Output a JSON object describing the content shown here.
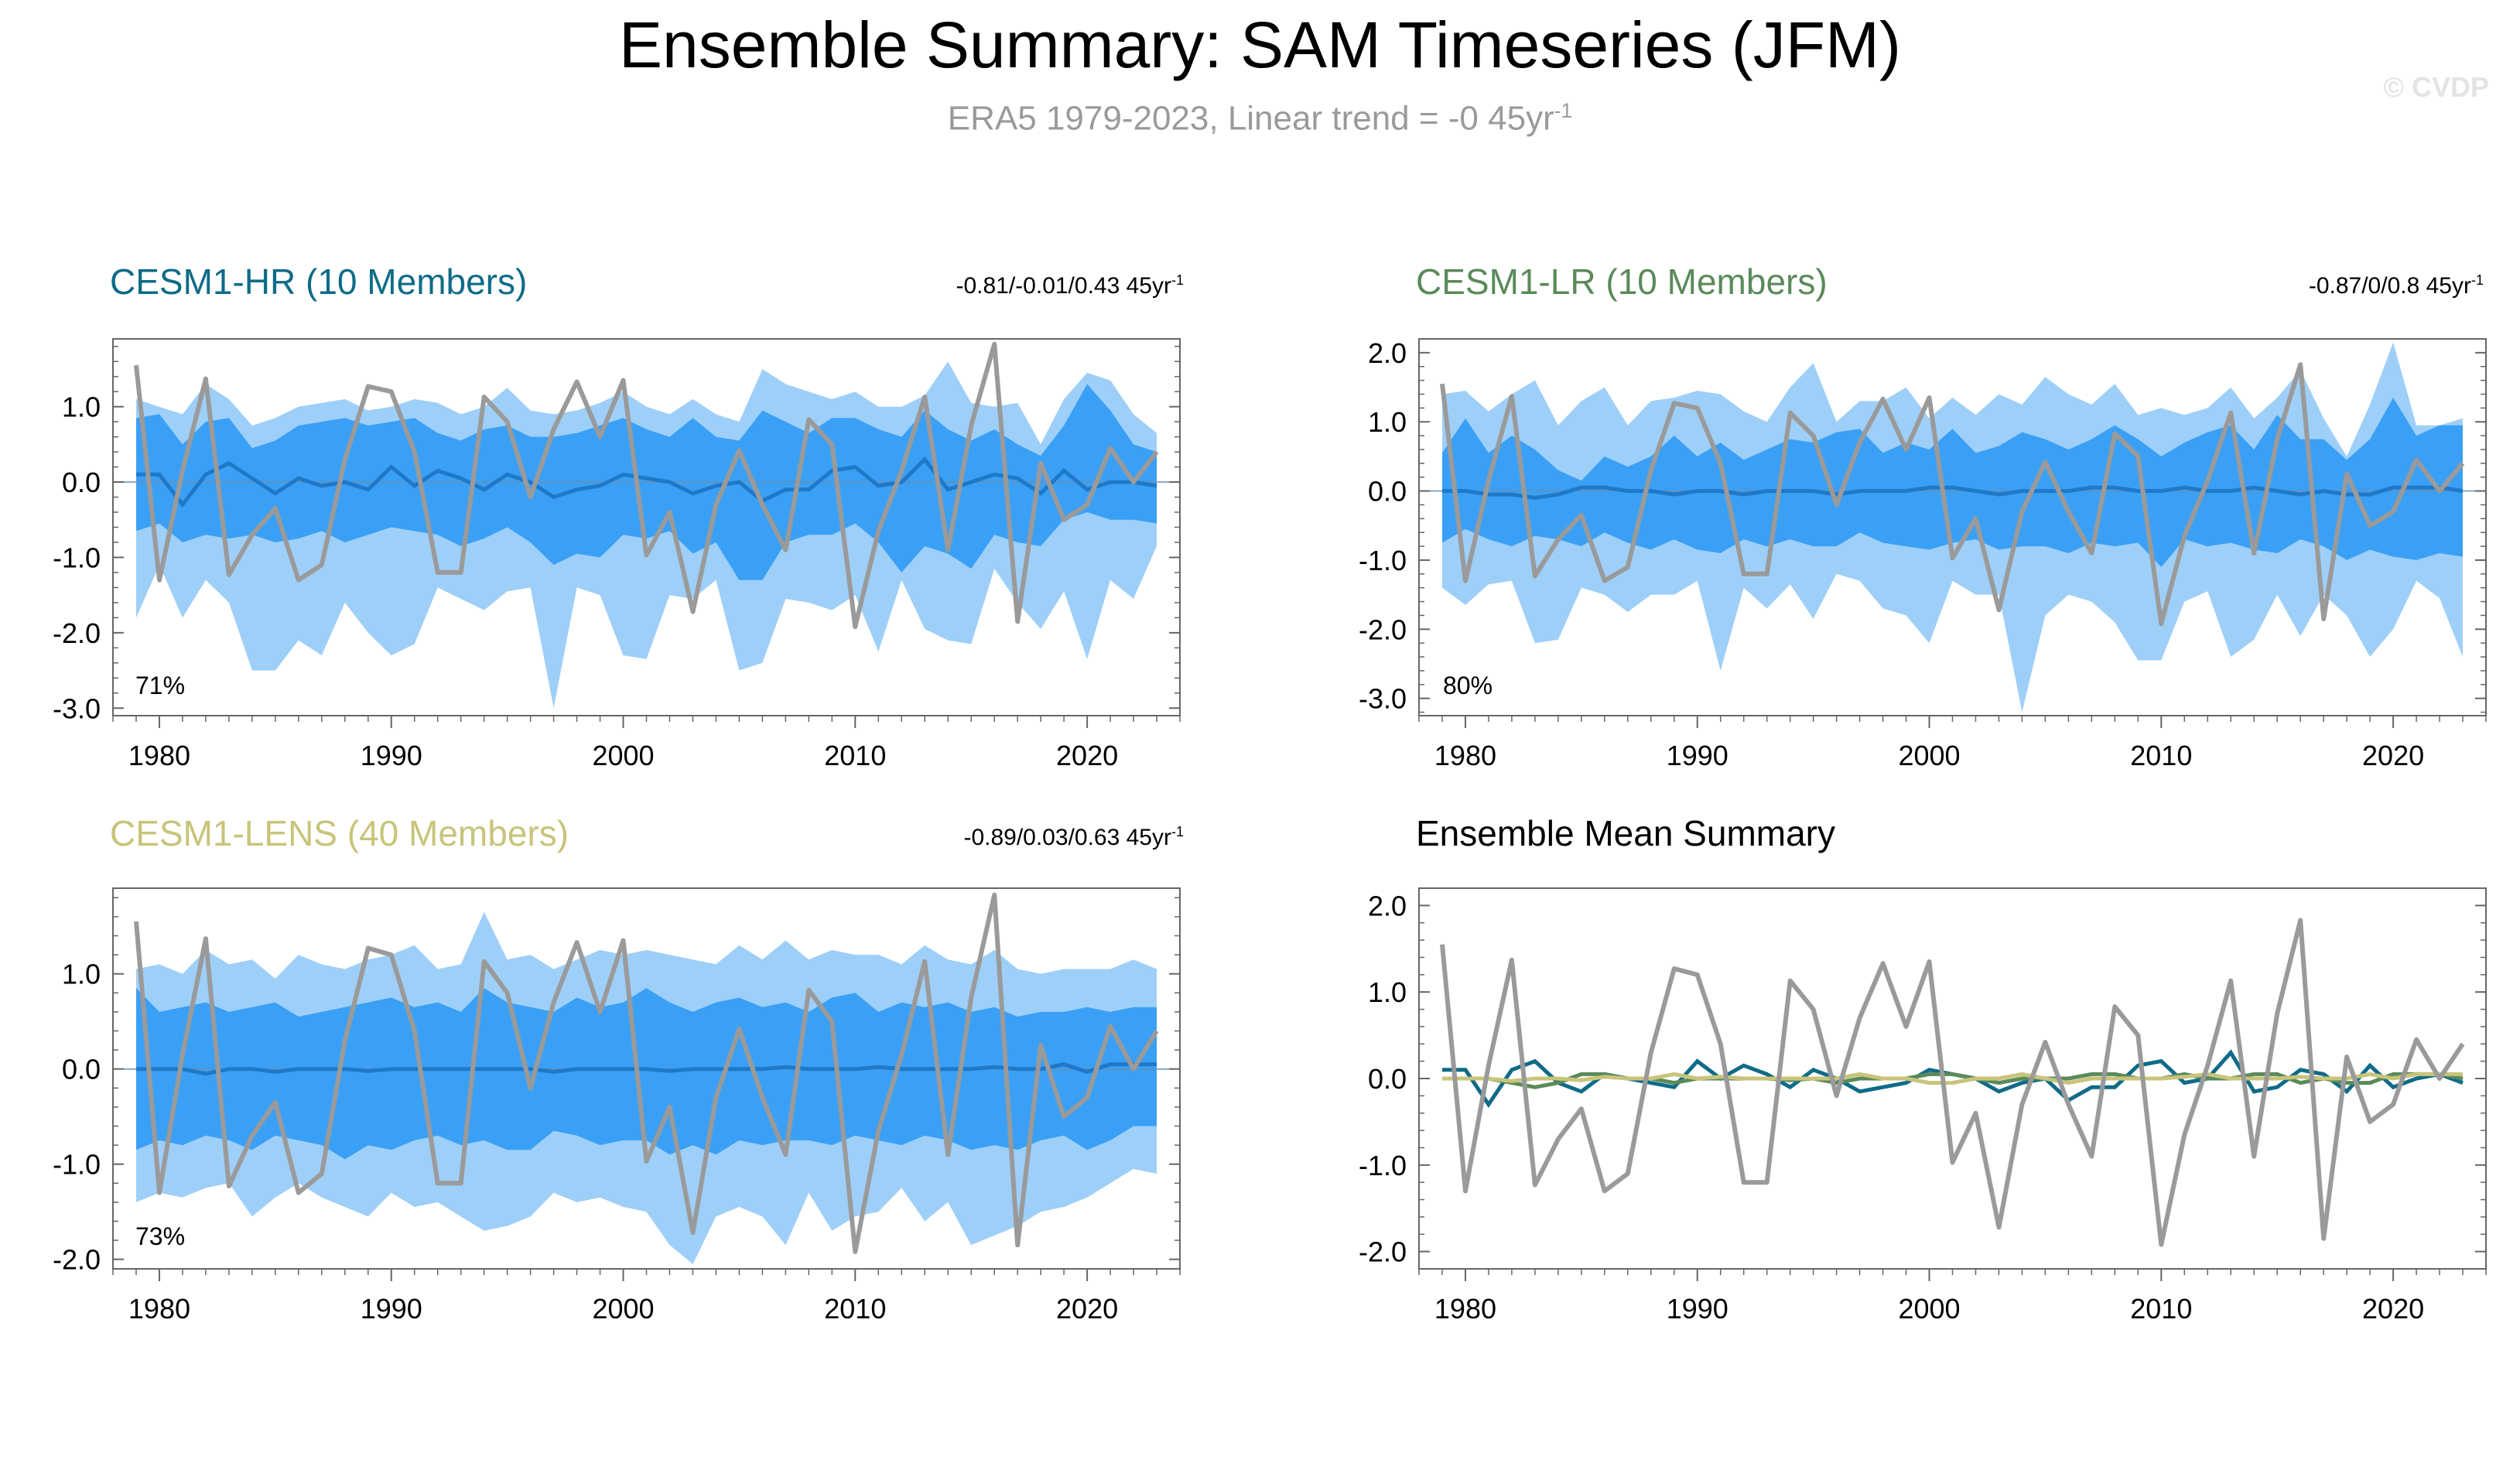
{
  "figure": {
    "title": "Ensemble Summary: SAM Timeseries (JFM)",
    "subtitle": "ERA5 1979-2023, Linear trend = -0 45yr",
    "subtitle_sup": "-1",
    "watermark": "© CVDP"
  },
  "colors": {
    "hr": "#0f6b87",
    "lr": "#5a8a5a",
    "lens": "#c8c47a",
    "obs": "#9a9a9a",
    "band_outer": "#9ecff8",
    "band_inner": "#3aa0f5",
    "mean_line": "#1f78c8"
  },
  "chart_data": [
    {
      "id": "hr",
      "type": "area",
      "title": "CESM1-HR (10 Members)",
      "range_text": "-0.81/-0.01/0.43 45yr",
      "range_sup": "-1",
      "percent_text": "71%",
      "x_start": 1979,
      "xlim": [
        1978,
        2024
      ],
      "ylim": [
        -3.1,
        1.9
      ],
      "yticks": [
        {
          "v": 1.0,
          "label": "1.0"
        },
        {
          "v": 0.0,
          "label": "0.0"
        },
        {
          "v": -1.0,
          "label": "-1.0"
        },
        {
          "v": -2.0,
          "label": "-2.0"
        },
        {
          "v": -3.0,
          "label": "-3.0"
        }
      ],
      "xticks": [
        1980,
        1990,
        2000,
        2010,
        2020
      ],
      "ens_mean": [
        0.1,
        0.1,
        -0.3,
        0.1,
        0.25,
        0.05,
        -0.15,
        0.05,
        -0.05,
        0.0,
        -0.1,
        0.2,
        -0.05,
        0.15,
        0.05,
        -0.1,
        0.1,
        0.0,
        -0.2,
        -0.1,
        -0.05,
        0.1,
        0.05,
        0.0,
        -0.15,
        -0.05,
        0.0,
        -0.25,
        -0.1,
        -0.1,
        0.15,
        0.2,
        -0.05,
        0.0,
        0.3,
        -0.1,
        0.0,
        0.1,
        0.05,
        -0.15,
        0.15,
        -0.1,
        0.0,
        0.0,
        -0.05
      ],
      "inner_upper": [
        0.85,
        0.9,
        0.5,
        0.8,
        0.85,
        0.45,
        0.55,
        0.75,
        0.8,
        0.85,
        0.75,
        0.8,
        0.85,
        0.65,
        0.55,
        0.7,
        0.75,
        0.6,
        0.6,
        0.65,
        0.75,
        0.85,
        0.7,
        0.6,
        0.85,
        0.6,
        0.55,
        0.95,
        0.8,
        0.65,
        0.85,
        0.85,
        0.7,
        0.6,
        0.95,
        0.7,
        0.55,
        0.7,
        0.5,
        0.35,
        0.75,
        1.3,
        0.95,
        0.5,
        0.4
      ],
      "inner_lower": [
        -0.65,
        -0.55,
        -0.8,
        -0.7,
        -0.75,
        -0.7,
        -0.8,
        -0.75,
        -0.65,
        -0.8,
        -0.7,
        -0.6,
        -0.65,
        -0.7,
        -0.85,
        -0.75,
        -0.6,
        -0.8,
        -1.1,
        -0.95,
        -1.0,
        -0.7,
        -0.75,
        -0.65,
        -0.95,
        -0.8,
        -1.3,
        -1.3,
        -0.8,
        -0.7,
        -0.7,
        -0.55,
        -0.8,
        -1.2,
        -0.85,
        -0.95,
        -1.15,
        -0.7,
        -0.8,
        -0.85,
        -0.5,
        -0.4,
        -0.5,
        -0.5,
        -0.55
      ],
      "outer_upper": [
        1.1,
        1.0,
        0.9,
        1.3,
        1.1,
        0.75,
        0.85,
        1.0,
        1.05,
        1.1,
        0.95,
        1.0,
        1.1,
        1.05,
        0.9,
        1.0,
        1.25,
        0.95,
        0.9,
        0.95,
        1.05,
        1.2,
        1.0,
        0.9,
        1.1,
        0.9,
        0.8,
        1.5,
        1.3,
        1.2,
        1.1,
        1.2,
        1.0,
        1.0,
        1.15,
        1.6,
        1.05,
        1.0,
        1.05,
        0.5,
        1.1,
        1.45,
        1.35,
        0.9,
        0.65
      ],
      "outer_lower": [
        -1.8,
        -1.1,
        -1.8,
        -1.3,
        -1.6,
        -2.5,
        -2.5,
        -2.1,
        -2.3,
        -1.6,
        -2.0,
        -2.3,
        -2.15,
        -1.4,
        -1.55,
        -1.7,
        -1.45,
        -1.4,
        -3.0,
        -1.4,
        -1.5,
        -2.3,
        -2.35,
        -1.5,
        -1.55,
        -1.3,
        -2.5,
        -2.4,
        -1.55,
        -1.6,
        -1.7,
        -1.5,
        -2.25,
        -1.3,
        -1.95,
        -2.1,
        -2.15,
        -1.15,
        -1.6,
        -1.95,
        -1.45,
        -2.35,
        -1.3,
        -1.55,
        -0.85
      ]
    },
    {
      "id": "lr",
      "type": "area",
      "title": "CESM1-LR (10 Members)",
      "range_text": "-0.87/0/0.8 45yr",
      "range_sup": "-1",
      "percent_text": "80%",
      "x_start": 1979,
      "xlim": [
        1978,
        2024
      ],
      "ylim": [
        -3.25,
        2.2
      ],
      "yticks": [
        {
          "v": 2.0,
          "label": "2.0"
        },
        {
          "v": 1.0,
          "label": "1.0"
        },
        {
          "v": 0.0,
          "label": "0.0"
        },
        {
          "v": -1.0,
          "label": "-1.0"
        },
        {
          "v": -2.0,
          "label": "-2.0"
        },
        {
          "v": -3.0,
          "label": "-3.0"
        }
      ],
      "xticks": [
        1980,
        1990,
        2000,
        2010,
        2020
      ],
      "ens_mean": [
        0.0,
        0.0,
        -0.05,
        -0.05,
        -0.1,
        -0.05,
        0.05,
        0.05,
        0.0,
        0.0,
        -0.05,
        0.0,
        0.0,
        -0.05,
        0.0,
        0.0,
        0.0,
        -0.05,
        0.0,
        0.0,
        0.0,
        0.05,
        0.05,
        0.0,
        -0.05,
        0.0,
        0.0,
        0.0,
        0.05,
        0.05,
        0.0,
        0.0,
        0.05,
        0.0,
        0.0,
        0.05,
        0.0,
        -0.05,
        0.0,
        -0.05,
        -0.05,
        0.05,
        0.05,
        0.05,
        0.0
      ],
      "inner_upper": [
        0.55,
        1.05,
        0.55,
        0.8,
        0.6,
        0.3,
        0.15,
        0.5,
        0.35,
        0.5,
        0.8,
        0.5,
        0.7,
        0.45,
        0.6,
        0.75,
        0.7,
        0.85,
        0.9,
        0.55,
        0.7,
        0.6,
        0.9,
        0.55,
        0.65,
        0.85,
        0.75,
        0.6,
        0.75,
        0.95,
        0.75,
        0.5,
        0.7,
        0.85,
        0.95,
        0.6,
        1.1,
        0.75,
        0.75,
        0.45,
        0.75,
        1.35,
        0.8,
        0.95,
        0.95
      ],
      "inner_lower": [
        -0.75,
        -0.55,
        -0.7,
        -0.8,
        -0.65,
        -0.7,
        -0.8,
        -0.6,
        -0.75,
        -0.85,
        -0.7,
        -0.85,
        -0.9,
        -0.7,
        -0.8,
        -0.7,
        -0.8,
        -0.8,
        -0.6,
        -0.75,
        -0.8,
        -0.85,
        -0.75,
        -0.7,
        -0.85,
        -0.8,
        -0.8,
        -0.9,
        -0.75,
        -0.8,
        -0.75,
        -1.1,
        -0.7,
        -0.8,
        -0.75,
        -0.85,
        -0.9,
        -0.7,
        -0.8,
        -1.0,
        -0.85,
        -0.95,
        -1.0,
        -0.9,
        -0.95
      ],
      "outer_upper": [
        1.4,
        1.45,
        1.15,
        1.4,
        1.6,
        0.95,
        1.3,
        1.5,
        0.95,
        1.3,
        1.35,
        1.45,
        1.4,
        1.15,
        1.0,
        1.5,
        1.85,
        1.0,
        1.3,
        1.3,
        1.5,
        1.05,
        1.35,
        1.1,
        1.4,
        1.25,
        1.65,
        1.4,
        1.25,
        1.55,
        1.1,
        1.2,
        1.1,
        1.2,
        1.5,
        1.05,
        1.35,
        1.75,
        1.05,
        0.5,
        1.25,
        2.15,
        0.95,
        0.95,
        1.05
      ],
      "outer_lower": [
        -1.4,
        -1.65,
        -1.35,
        -1.3,
        -2.2,
        -2.15,
        -1.4,
        -1.5,
        -1.75,
        -1.5,
        -1.5,
        -1.3,
        -2.6,
        -1.4,
        -1.7,
        -1.35,
        -1.85,
        -1.2,
        -1.3,
        -1.7,
        -1.8,
        -2.2,
        -1.3,
        -1.5,
        -1.5,
        -3.2,
        -1.8,
        -1.5,
        -1.6,
        -1.9,
        -2.45,
        -2.45,
        -1.6,
        -1.45,
        -2.4,
        -2.15,
        -1.5,
        -2.1,
        -1.5,
        -1.8,
        -2.4,
        -2.0,
        -1.3,
        -1.55,
        -2.4
      ]
    },
    {
      "id": "lens",
      "type": "area",
      "title": "CESM1-LENS (40 Members)",
      "range_text": "-0.89/0.03/0.63 45yr",
      "range_sup": "-1",
      "percent_text": "73%",
      "x_start": 1979,
      "xlim": [
        1978,
        2024
      ],
      "ylim": [
        -2.1,
        1.9
      ],
      "yticks": [
        {
          "v": 1.0,
          "label": "1.0"
        },
        {
          "v": 0.0,
          "label": "0.0"
        },
        {
          "v": -1.0,
          "label": "-1.0"
        },
        {
          "v": -2.0,
          "label": "-2.0"
        }
      ],
      "xticks": [
        1980,
        1990,
        2000,
        2010,
        2020
      ],
      "ens_mean": [
        0.0,
        0.0,
        0.0,
        -0.05,
        0.0,
        0.0,
        -0.03,
        0.0,
        0.0,
        0.0,
        -0.02,
        0.0,
        0.0,
        0.0,
        0.0,
        0.0,
        0.0,
        0.0,
        -0.03,
        0.0,
        0.0,
        0.0,
        0.0,
        -0.02,
        0.0,
        0.0,
        0.0,
        0.0,
        0.02,
        0.0,
        0.0,
        0.0,
        0.02,
        0.0,
        0.0,
        0.0,
        0.0,
        0.02,
        0.0,
        0.0,
        0.05,
        -0.03,
        0.05,
        0.05,
        0.05
      ],
      "inner_upper": [
        0.85,
        0.6,
        0.65,
        0.7,
        0.6,
        0.65,
        0.7,
        0.55,
        0.6,
        0.65,
        0.7,
        0.75,
        0.65,
        0.7,
        0.6,
        0.85,
        0.7,
        0.65,
        0.6,
        0.75,
        0.65,
        0.7,
        0.85,
        0.7,
        0.6,
        0.7,
        0.75,
        0.65,
        0.7,
        0.6,
        0.75,
        0.8,
        0.6,
        0.7,
        0.65,
        0.7,
        0.6,
        0.65,
        0.55,
        0.6,
        0.6,
        0.65,
        0.6,
        0.65,
        0.65
      ],
      "inner_lower": [
        -0.85,
        -0.75,
        -0.8,
        -0.7,
        -0.75,
        -0.85,
        -0.7,
        -0.75,
        -0.8,
        -0.95,
        -0.8,
        -0.85,
        -0.75,
        -0.7,
        -0.8,
        -0.75,
        -0.85,
        -0.85,
        -0.65,
        -0.7,
        -0.8,
        -0.75,
        -0.75,
        -0.9,
        -0.8,
        -0.9,
        -0.75,
        -0.8,
        -0.75,
        -0.75,
        -0.8,
        -0.7,
        -0.75,
        -0.8,
        -0.7,
        -0.75,
        -0.85,
        -0.8,
        -0.85,
        -0.75,
        -0.7,
        -0.85,
        -0.75,
        -0.6,
        -0.6
      ],
      "outer_upper": [
        1.05,
        1.1,
        1.0,
        1.25,
        1.1,
        1.15,
        0.95,
        1.2,
        1.1,
        1.05,
        1.15,
        1.2,
        1.3,
        1.05,
        1.1,
        1.65,
        1.15,
        1.2,
        1.05,
        1.15,
        1.25,
        1.2,
        1.25,
        1.2,
        1.15,
        1.1,
        1.3,
        1.15,
        1.35,
        1.15,
        1.25,
        1.2,
        1.2,
        1.1,
        1.3,
        1.15,
        1.1,
        1.25,
        1.05,
        1.0,
        1.05,
        1.05,
        1.05,
        1.15,
        1.05
      ],
      "outer_lower": [
        -1.4,
        -1.3,
        -1.35,
        -1.25,
        -1.2,
        -1.55,
        -1.35,
        -1.2,
        -1.35,
        -1.45,
        -1.55,
        -1.3,
        -1.45,
        -1.4,
        -1.55,
        -1.7,
        -1.65,
        -1.55,
        -1.3,
        -1.4,
        -1.35,
        -1.45,
        -1.5,
        -1.85,
        -2.05,
        -1.55,
        -1.45,
        -1.55,
        -1.85,
        -1.3,
        -1.7,
        -1.55,
        -1.5,
        -1.25,
        -1.6,
        -1.4,
        -1.85,
        -1.75,
        -1.65,
        -1.5,
        -1.45,
        -1.35,
        -1.2,
        -1.05,
        -1.1
      ]
    },
    {
      "id": "mean",
      "type": "line",
      "title": "Ensemble Mean Summary",
      "x_start": 1979,
      "xlim": [
        1978,
        2024
      ],
      "ylim": [
        -2.2,
        2.2
      ],
      "yticks": [
        {
          "v": 2.0,
          "label": "2.0"
        },
        {
          "v": 1.0,
          "label": "1.0"
        },
        {
          "v": 0.0,
          "label": "0.0"
        },
        {
          "v": -1.0,
          "label": "-1.0"
        },
        {
          "v": -2.0,
          "label": "-2.0"
        }
      ],
      "xticks": [
        1980,
        1990,
        2000,
        2010,
        2020
      ],
      "series": [
        {
          "name": "CESM1-HR",
          "color_key": "hr",
          "values": [
            0.1,
            0.1,
            -0.3,
            0.1,
            0.2,
            -0.05,
            -0.15,
            0.05,
            0.0,
            -0.05,
            -0.1,
            0.2,
            0.0,
            0.15,
            0.05,
            -0.1,
            0.1,
            0.0,
            -0.15,
            -0.1,
            -0.05,
            0.1,
            0.05,
            0.0,
            -0.15,
            -0.05,
            0.0,
            -0.25,
            -0.1,
            -0.1,
            0.15,
            0.2,
            -0.05,
            0.0,
            0.3,
            -0.15,
            -0.1,
            0.1,
            0.05,
            -0.15,
            0.15,
            -0.1,
            0.0,
            0.05,
            -0.05
          ]
        },
        {
          "name": "CESM1-LR",
          "color_key": "lr",
          "values": [
            0.0,
            0.0,
            0.0,
            -0.05,
            -0.1,
            -0.05,
            0.05,
            0.05,
            0.0,
            0.0,
            -0.05,
            0.0,
            0.0,
            0.0,
            0.0,
            -0.02,
            0.0,
            -0.05,
            0.0,
            0.0,
            0.0,
            0.05,
            0.05,
            0.0,
            -0.05,
            0.0,
            0.0,
            0.0,
            0.05,
            0.05,
            0.0,
            0.0,
            0.05,
            0.0,
            0.0,
            0.05,
            0.05,
            -0.05,
            0.0,
            -0.05,
            -0.05,
            0.05,
            0.05,
            0.05,
            0.0
          ]
        },
        {
          "name": "CESM1-LENS",
          "color_key": "lens",
          "values": [
            0.0,
            0.0,
            0.0,
            -0.03,
            0.0,
            0.0,
            -0.02,
            0.02,
            0.0,
            0.0,
            0.05,
            0.0,
            0.02,
            0.0,
            0.0,
            0.0,
            0.0,
            0.0,
            0.05,
            0.0,
            0.0,
            -0.05,
            -0.05,
            0.0,
            0.0,
            0.05,
            0.0,
            -0.05,
            0.0,
            0.0,
            0.0,
            0.0,
            0.02,
            0.05,
            0.0,
            0.0,
            0.0,
            0.02,
            0.0,
            0.0,
            0.05,
            0.0,
            0.05,
            0.05,
            0.05
          ]
        }
      ]
    }
  ],
  "observed": {
    "name": "ERA5",
    "values": [
      1.55,
      -1.3,
      0.15,
      1.37,
      -1.23,
      -0.7,
      -0.35,
      -1.3,
      -1.1,
      0.3,
      1.27,
      1.2,
      0.4,
      -1.2,
      -1.2,
      1.13,
      0.8,
      -0.2,
      0.7,
      1.33,
      0.6,
      1.35,
      -0.97,
      -0.4,
      -1.72,
      -0.3,
      0.42,
      -0.3,
      -0.9,
      0.83,
      0.5,
      -1.92,
      -0.65,
      0.15,
      1.13,
      -0.9,
      0.75,
      1.83,
      -1.85,
      0.25,
      -0.5,
      -0.3,
      0.45,
      0.0,
      0.4
    ]
  }
}
